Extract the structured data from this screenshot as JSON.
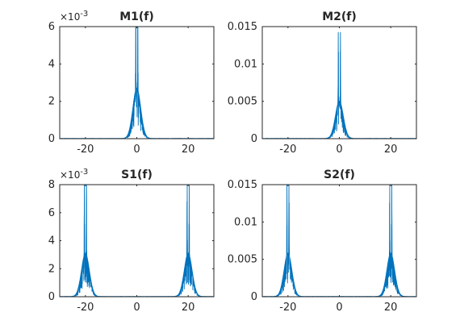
{
  "colors": {
    "series": "#0072BD",
    "axis": "#262626",
    "background": "#ffffff"
  },
  "chart_data": [
    {
      "type": "line",
      "title": "M1(f)",
      "xlim": [
        -30,
        30
      ],
      "ylim": [
        0,
        0.006
      ],
      "xticks": [
        -20,
        0,
        20
      ],
      "xtick_labels": [
        "-20",
        "0",
        "20"
      ],
      "yticks": [
        0,
        0.002,
        0.004,
        0.006
      ],
      "ytick_labels": [
        "0",
        "2",
        "4",
        "6"
      ],
      "y_multiplier": "×10",
      "y_multiplier_exp": "-3",
      "grid": false,
      "series": [
        {
          "peaks": [
            {
              "center": -0.4,
              "height": 0.0058,
              "width": 1.5,
              "sidelobe": 0.0014
            },
            {
              "center": 0.4,
              "height": 0.0058,
              "width": 1.5,
              "sidelobe": 0.0014
            }
          ]
        }
      ]
    },
    {
      "type": "line",
      "title": "M2(f)",
      "xlim": [
        -30,
        30
      ],
      "ylim": [
        0,
        0.015
      ],
      "xticks": [
        -20,
        0,
        20
      ],
      "xtick_labels": [
        "-20",
        "0",
        "20"
      ],
      "yticks": [
        0,
        0.005,
        0.01,
        0.015
      ],
      "ytick_labels": [
        "0",
        "0.005",
        "0.01",
        "0.015"
      ],
      "grid": false,
      "series": [
        {
          "peaks": [
            {
              "center": -0.4,
              "height": 0.0105,
              "width": 1.5,
              "sidelobe": 0.0026
            },
            {
              "center": 0.4,
              "height": 0.0105,
              "width": 1.5,
              "sidelobe": 0.0026
            }
          ]
        }
      ]
    },
    {
      "type": "line",
      "title": "S1(f)",
      "xlim": [
        -30,
        30
      ],
      "ylim": [
        0,
        0.008
      ],
      "xticks": [
        -20,
        0,
        20
      ],
      "xtick_labels": [
        "-20",
        "0",
        "20"
      ],
      "yticks": [
        0,
        0.002,
        0.004,
        0.006,
        0.008
      ],
      "ytick_labels": [
        "0",
        "2",
        "4",
        "6",
        "8"
      ],
      "y_multiplier": "×10",
      "y_multiplier_exp": "-3",
      "grid": false,
      "series": [
        {
          "peaks": [
            {
              "center": -20.4,
              "height": 0.006,
              "width": 1.5,
              "sidelobe": 0.0016
            },
            {
              "center": -19.6,
              "height": 0.006,
              "width": 1.5,
              "sidelobe": 0.0016
            },
            {
              "center": 19.6,
              "height": 0.006,
              "width": 1.5,
              "sidelobe": 0.0016
            },
            {
              "center": 20.4,
              "height": 0.006,
              "width": 1.5,
              "sidelobe": 0.0016
            }
          ]
        }
      ]
    },
    {
      "type": "line",
      "title": "S2(f)",
      "xlim": [
        -30,
        30
      ],
      "ylim": [
        0,
        0.015
      ],
      "xticks": [
        -20,
        0,
        20
      ],
      "xtick_labels": [
        "-20",
        "0",
        "20"
      ],
      "yticks": [
        0,
        0.005,
        0.01,
        0.015
      ],
      "ytick_labels": [
        "0",
        "0.005",
        "0.01",
        "0.015"
      ],
      "grid": false,
      "series": [
        {
          "peaks": [
            {
              "center": -20.4,
              "height": 0.011,
              "width": 1.5,
              "sidelobe": 0.003
            },
            {
              "center": -19.6,
              "height": 0.011,
              "width": 1.5,
              "sidelobe": 0.003
            },
            {
              "center": 19.6,
              "height": 0.011,
              "width": 1.5,
              "sidelobe": 0.003
            },
            {
              "center": 20.4,
              "height": 0.011,
              "width": 1.5,
              "sidelobe": 0.003
            }
          ]
        }
      ]
    }
  ]
}
